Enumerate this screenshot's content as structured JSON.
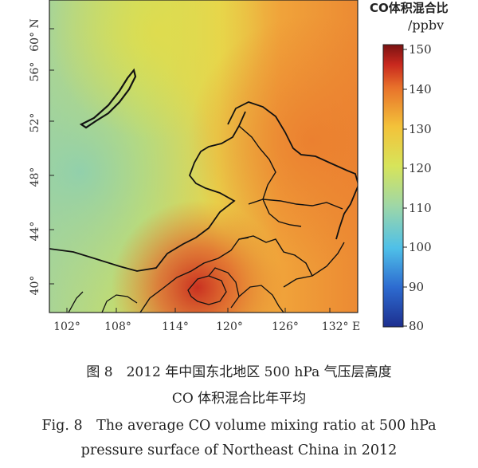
{
  "colorbar": {
    "title": "CO体积混合比",
    "unit": "/ppbv",
    "ticks": [
      "150",
      "140",
      "130",
      "120",
      "110",
      "100",
      "90",
      "80"
    ],
    "min": 80,
    "max": 150,
    "colors": [
      "#1d2f8f",
      "#2d6bd0",
      "#4fc0e8",
      "#9fd7a6",
      "#d7e45a",
      "#f3c23a",
      "#e8702a",
      "#c8281e",
      "#7a1212"
    ]
  },
  "axes": {
    "lat_ticks": [
      "60° N",
      "56°",
      "52°",
      "48°",
      "44°",
      "40°"
    ],
    "lon_ticks": [
      "102°",
      "108°",
      "114°",
      "120°",
      "126°",
      "132° E"
    ]
  },
  "caption": {
    "zh_line1": "图 8　2012 年中国东北地区 500 hPa 气压层高度",
    "zh_line2": "CO 体积混合比年平均",
    "en_line1": "Fig. 8　The average CO volume mixing ratio at 500 hPa",
    "en_line2": "pressure surface of Northeast China in 2012"
  }
}
